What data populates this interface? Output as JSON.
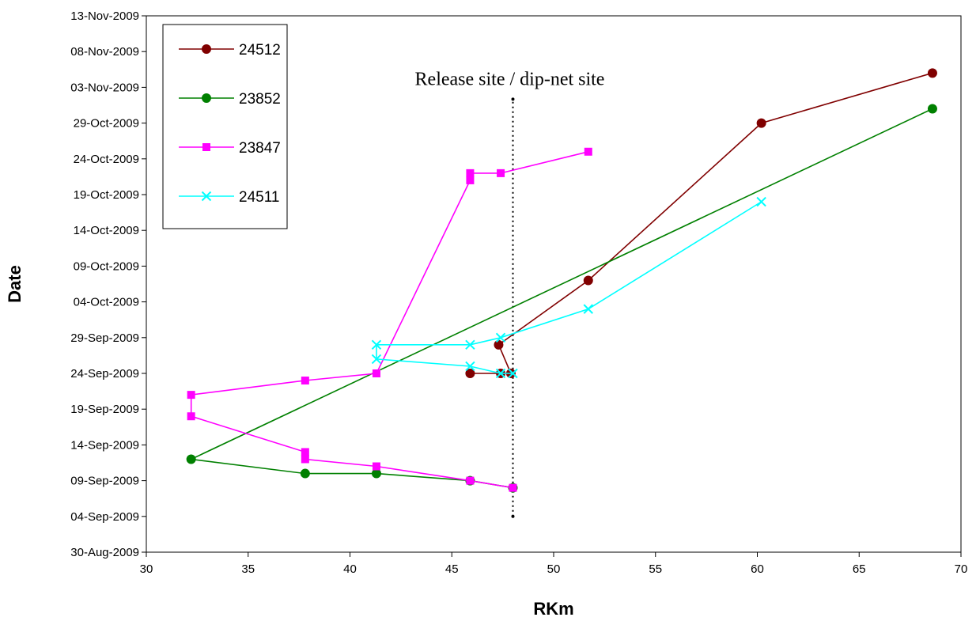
{
  "chart_data": {
    "type": "line",
    "title": "",
    "xlabel": "RKm",
    "ylabel": "Date",
    "xlim": [
      30,
      70
    ],
    "ylim": [
      "2009-08-30",
      "2009-11-13"
    ],
    "x_ticks": [
      30,
      35,
      40,
      45,
      50,
      55,
      60,
      65,
      70
    ],
    "y_ticks": [
      "2009-08-30",
      "2009-09-04",
      "2009-09-09",
      "2009-09-14",
      "2009-09-19",
      "2009-09-24",
      "2009-09-29",
      "2009-10-04",
      "2009-10-09",
      "2009-10-14",
      "2009-10-19",
      "2009-10-24",
      "2009-10-29",
      "2009-11-03",
      "2009-11-08",
      "2009-11-13"
    ],
    "y_tick_labels": [
      "30-Aug-2009",
      "04-Sep-2009",
      "09-Sep-2009",
      "14-Sep-2009",
      "19-Sep-2009",
      "24-Sep-2009",
      "29-Sep-2009",
      "04-Oct-2009",
      "09-Oct-2009",
      "14-Oct-2009",
      "19-Oct-2009",
      "24-Oct-2009",
      "29-Oct-2009",
      "03-Nov-2009",
      "08-Nov-2009",
      "13-Nov-2009"
    ],
    "grid": false,
    "legend_position": "top-left",
    "series": [
      {
        "name": "24512",
        "color": "#800000",
        "marker": "circle",
        "points": [
          {
            "x": 45.9,
            "y": "2009-09-24"
          },
          {
            "x": 47.4,
            "y": "2009-09-24"
          },
          {
            "x": 47.9,
            "y": "2009-09-24"
          },
          {
            "x": 47.3,
            "y": "2009-09-28"
          },
          {
            "x": 51.7,
            "y": "2009-10-07"
          },
          {
            "x": 60.2,
            "y": "2009-10-29"
          },
          {
            "x": 68.6,
            "y": "2009-11-05"
          }
        ]
      },
      {
        "name": "23852",
        "color": "#008000",
        "marker": "circle",
        "points": [
          {
            "x": 48.0,
            "y": "2009-09-08"
          },
          {
            "x": 45.9,
            "y": "2009-09-09"
          },
          {
            "x": 41.3,
            "y": "2009-09-10"
          },
          {
            "x": 37.8,
            "y": "2009-09-10"
          },
          {
            "x": 32.2,
            "y": "2009-09-12"
          },
          {
            "x": 68.6,
            "y": "2009-10-31"
          }
        ]
      },
      {
        "name": "23847",
        "color": "#ff00ff",
        "marker": "square",
        "points": [
          {
            "x": 48.0,
            "y": "2009-09-08"
          },
          {
            "x": 45.9,
            "y": "2009-09-09"
          },
          {
            "x": 41.3,
            "y": "2009-09-11"
          },
          {
            "x": 37.8,
            "y": "2009-09-12"
          },
          {
            "x": 37.8,
            "y": "2009-09-13"
          },
          {
            "x": 32.2,
            "y": "2009-09-18"
          },
          {
            "x": 32.2,
            "y": "2009-09-21"
          },
          {
            "x": 37.8,
            "y": "2009-09-23"
          },
          {
            "x": 41.3,
            "y": "2009-09-24"
          },
          {
            "x": 45.9,
            "y": "2009-10-21"
          },
          {
            "x": 45.9,
            "y": "2009-10-22"
          },
          {
            "x": 47.4,
            "y": "2009-10-22"
          },
          {
            "x": 51.7,
            "y": "2009-10-25"
          }
        ]
      },
      {
        "name": "24511",
        "color": "#00ffff",
        "marker": "x",
        "points": [
          {
            "x": 48.0,
            "y": "2009-09-24"
          },
          {
            "x": 47.4,
            "y": "2009-09-24"
          },
          {
            "x": 45.9,
            "y": "2009-09-25"
          },
          {
            "x": 41.3,
            "y": "2009-09-26"
          },
          {
            "x": 41.3,
            "y": "2009-09-28"
          },
          {
            "x": 45.9,
            "y": "2009-09-28"
          },
          {
            "x": 47.4,
            "y": "2009-09-29"
          },
          {
            "x": 51.7,
            "y": "2009-10-03"
          },
          {
            "x": 60.2,
            "y": "2009-10-18"
          }
        ]
      }
    ],
    "annotations": [
      {
        "text": "Release site / dip-net site",
        "x": 48.0,
        "y_start": "2009-09-04",
        "y_end": "2009-11-03"
      }
    ]
  }
}
